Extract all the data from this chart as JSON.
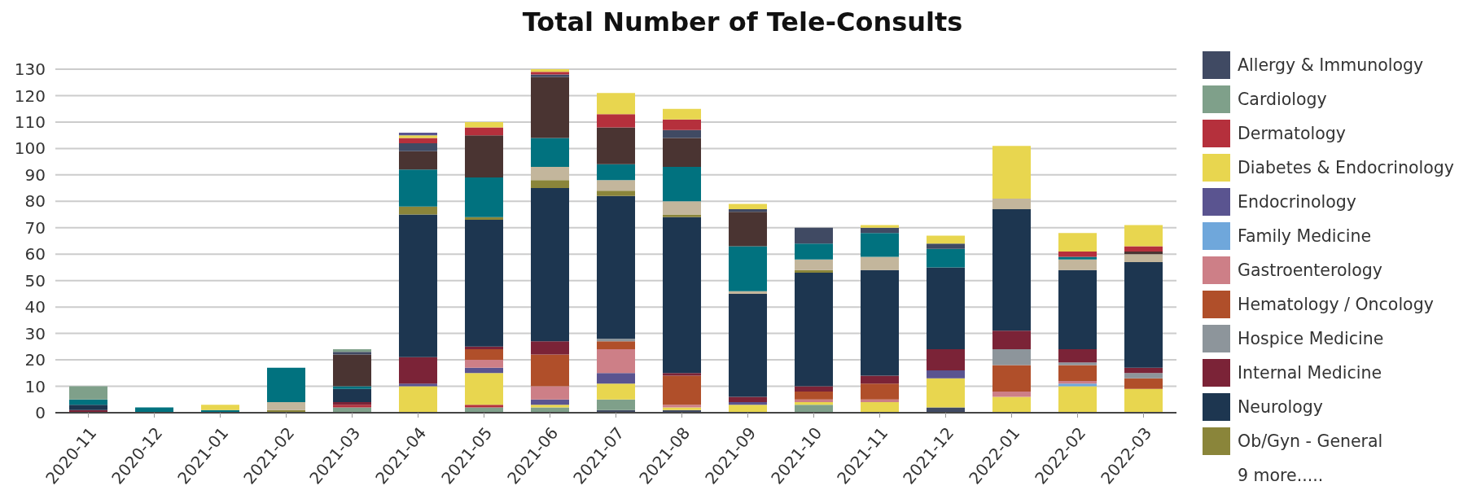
{
  "chart_data": {
    "type": "bar",
    "title": "Total Number of Tele-Consults",
    "stacked": true,
    "categories": [
      "2020-11",
      "2020-12",
      "2021-01",
      "2021-02",
      "2021-03",
      "2021-04",
      "2021-05",
      "2021-06",
      "2021-07",
      "2021-08",
      "2021-09",
      "2021-10",
      "2021-11",
      "2021-12",
      "2022-01",
      "2022-02",
      "2022-03"
    ],
    "series": [
      {
        "name": "Allergy & Immunology",
        "color": "#404a63",
        "values": [
          null,
          null,
          null,
          null,
          null,
          null,
          null,
          null,
          1,
          1,
          null,
          null,
          null,
          2,
          null,
          null,
          null
        ]
      },
      {
        "name": "Cardiology",
        "color": "#7fa08a",
        "values": [
          null,
          null,
          null,
          null,
          2,
          null,
          2,
          2,
          4,
          null,
          null,
          3,
          null,
          null,
          null,
          null,
          null
        ]
      },
      {
        "name": "Dermatology",
        "color": "#b5303c",
        "values": [
          null,
          null,
          null,
          null,
          1,
          null,
          1,
          null,
          null,
          null,
          null,
          null,
          null,
          null,
          null,
          null,
          null
        ]
      },
      {
        "name": "Diabetes & Endocrinology",
        "color": "#e8d64f",
        "values": [
          null,
          null,
          null,
          null,
          null,
          10,
          12,
          1,
          6,
          1,
          3,
          1,
          4,
          11,
          6,
          10,
          9
        ]
      },
      {
        "name": "Endocrinology",
        "color": "#5a5490",
        "values": [
          null,
          null,
          null,
          null,
          null,
          1,
          2,
          2,
          4,
          null,
          1,
          null,
          null,
          3,
          null,
          null,
          null
        ]
      },
      {
        "name": "Family Medicine",
        "color": "#6fa7db",
        "values": [
          null,
          null,
          null,
          null,
          null,
          null,
          null,
          null,
          null,
          null,
          null,
          null,
          null,
          null,
          null,
          1,
          null
        ]
      },
      {
        "name": "Gastroenterology",
        "color": "#cd7f87",
        "values": [
          null,
          null,
          null,
          null,
          null,
          null,
          3,
          5,
          9,
          1,
          null,
          1,
          1,
          null,
          2,
          1,
          null
        ]
      },
      {
        "name": "Hematology / Oncology",
        "color": "#b04f2a",
        "values": [
          null,
          null,
          null,
          null,
          null,
          null,
          4,
          12,
          3,
          11,
          null,
          3,
          6,
          null,
          10,
          6,
          4
        ]
      },
      {
        "name": "Hospice Medicine",
        "color": "#8d959b",
        "values": [
          null,
          null,
          null,
          null,
          null,
          null,
          null,
          null,
          1,
          null,
          null,
          null,
          null,
          null,
          6,
          1,
          2
        ]
      },
      {
        "name": "Internal Medicine",
        "color": "#7b2337",
        "values": [
          1,
          null,
          null,
          null,
          1,
          10,
          1,
          5,
          null,
          1,
          2,
          2,
          3,
          8,
          7,
          5,
          2
        ]
      },
      {
        "name": "Neurology",
        "color": "#1d3650",
        "values": [
          2,
          null,
          null,
          null,
          5,
          54,
          48,
          58,
          54,
          59,
          39,
          43,
          40,
          31,
          46,
          30,
          40
        ]
      },
      {
        "name": "Ob/Gyn - General",
        "color": "#8a853a",
        "values": [
          null,
          null,
          null,
          1,
          null,
          3,
          1,
          3,
          2,
          1,
          null,
          1,
          null,
          null,
          null,
          null,
          null
        ]
      },
      {
        "color": "#c3b69c",
        "values": [
          null,
          null,
          null,
          3,
          null,
          null,
          null,
          5,
          4,
          5,
          1,
          4,
          5,
          null,
          4,
          4,
          3
        ]
      },
      {
        "color": "#01727f",
        "values": [
          2,
          2,
          1,
          13,
          1,
          14,
          15,
          11,
          6,
          13,
          17,
          6,
          9,
          7,
          null,
          1,
          null
        ]
      },
      {
        "color": "#4a3432",
        "values": [
          null,
          null,
          null,
          null,
          12,
          7,
          16,
          23,
          14,
          11,
          13,
          null,
          null,
          null,
          null,
          null,
          1
        ]
      },
      {
        "color": "#404a63",
        "values": [
          null,
          null,
          null,
          null,
          1,
          3,
          null,
          1,
          null,
          3,
          1,
          6,
          2,
          2,
          null,
          null,
          null
        ]
      },
      {
        "color": "#7fa08a",
        "values": [
          5,
          null,
          null,
          null,
          1,
          null,
          null,
          null,
          null,
          null,
          null,
          null,
          null,
          null,
          null,
          null,
          null
        ]
      },
      {
        "color": "#b5303c",
        "values": [
          null,
          null,
          null,
          null,
          null,
          2,
          3,
          1,
          5,
          4,
          null,
          null,
          null,
          null,
          null,
          2,
          2
        ]
      },
      {
        "color": "#e8d64f",
        "values": [
          null,
          null,
          2,
          null,
          null,
          1,
          2,
          1,
          8,
          4,
          2,
          null,
          1,
          3,
          20,
          7,
          8
        ]
      },
      {
        "color": "#5a5490",
        "values": [
          null,
          null,
          null,
          null,
          null,
          1,
          null,
          null,
          null,
          null,
          null,
          null,
          null,
          null,
          null,
          null,
          null
        ]
      }
    ],
    "ylim": [
      0,
      130
    ],
    "yticks": [
      0,
      10,
      20,
      30,
      40,
      50,
      60,
      70,
      80,
      90,
      100,
      110,
      120,
      130
    ],
    "grid": "y",
    "legend": "right",
    "annotations": [
      "9 more....."
    ]
  }
}
